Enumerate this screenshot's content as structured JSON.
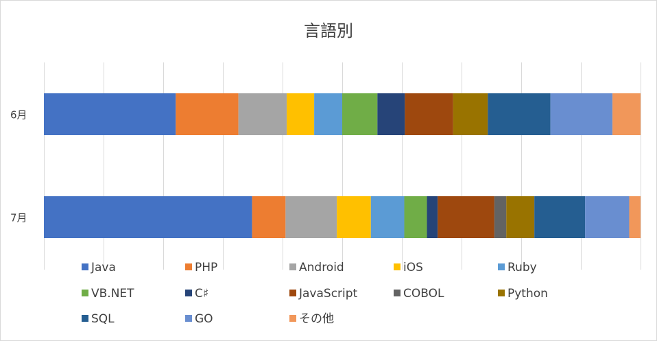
{
  "chart_data": {
    "type": "bar",
    "orientation": "horizontal",
    "stacked": "100%",
    "title": "言語別",
    "categories": [
      "6月",
      "7月"
    ],
    "grid": true,
    "legend_position": "bottom",
    "series": [
      {
        "name": "Java",
        "color": "#4472c4",
        "values": [
          22.1,
          34.9
        ]
      },
      {
        "name": "PHP",
        "color": "#ed7d31",
        "values": [
          10.5,
          5.6
        ]
      },
      {
        "name": "Android",
        "color": "#a5a5a5",
        "values": [
          8.1,
          8.6
        ]
      },
      {
        "name": "iOS",
        "color": "#ffc000",
        "values": [
          4.6,
          5.7
        ]
      },
      {
        "name": "Ruby",
        "color": "#5b9bd5",
        "values": [
          4.7,
          5.6
        ]
      },
      {
        "name": "VB.NET",
        "color": "#70ad47",
        "values": [
          5.9,
          3.8
        ]
      },
      {
        "name": "C♯",
        "color": "#264478",
        "values": [
          4.6,
          1.8
        ]
      },
      {
        "name": "JavaScript",
        "color": "#9e480e",
        "values": [
          8.1,
          9.5
        ]
      },
      {
        "name": "COBOL",
        "color": "#636363",
        "values": [
          0.0,
          2.0
        ]
      },
      {
        "name": "Python",
        "color": "#997300",
        "values": [
          5.8,
          4.7
        ]
      },
      {
        "name": "SQL",
        "color": "#255e91",
        "values": [
          10.5,
          8.5
        ]
      },
      {
        "name": "GO",
        "color": "#698ed0",
        "values": [
          10.4,
          7.4
        ]
      },
      {
        "name": "その他",
        "color": "#f1975a",
        "values": [
          4.7,
          1.9
        ]
      }
    ]
  }
}
